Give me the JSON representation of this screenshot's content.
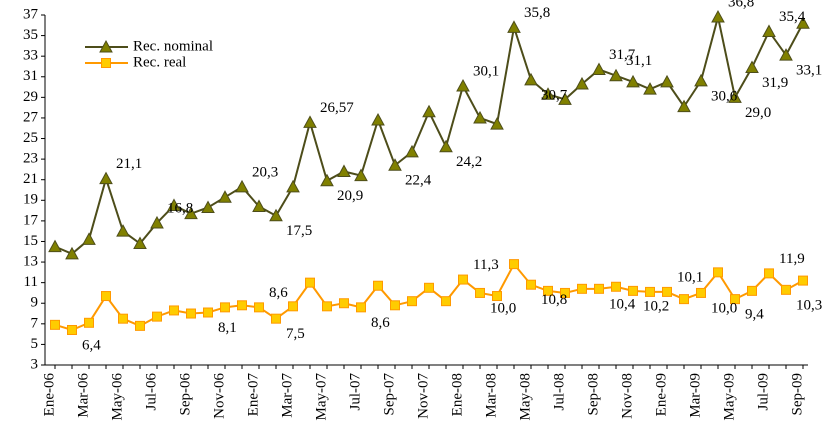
{
  "chart_data": {
    "type": "line",
    "categories": [
      "Ene-06",
      null,
      "Mar-06",
      null,
      "May-06",
      null,
      "Jul-06",
      null,
      "Sep-06",
      null,
      "Nov-06",
      null,
      "Ene-07",
      null,
      "Mar-07",
      null,
      "May-07",
      null,
      "Jul-07",
      null,
      "Sep-07",
      null,
      "Nov-07",
      null,
      "Ene-08",
      null,
      "Mar-08",
      null,
      "May-08",
      null,
      "Jul-08",
      null,
      "Sep-08",
      null,
      "Nov-08",
      null,
      "Ene-09",
      null,
      "Mar-09",
      null,
      "May-09",
      null,
      "Jul-09",
      null,
      "Sep-09"
    ],
    "series": [
      {
        "name": "Rec. nominal",
        "color": "#4d4d1a",
        "marker_color": "#808000",
        "marker": "triangle",
        "values": [
          14.5,
          13.8,
          15.2,
          21.1,
          16.0,
          14.8,
          16.8,
          18.5,
          17.7,
          18.3,
          19.3,
          20.3,
          18.4,
          17.5,
          20.3,
          26.57,
          20.9,
          21.8,
          21.4,
          26.8,
          22.4,
          23.7,
          27.6,
          24.2,
          30.1,
          27.0,
          26.4,
          35.8,
          30.7,
          29.3,
          28.8,
          30.3,
          31.7,
          31.1,
          30.5,
          29.8,
          30.5,
          28.1,
          30.6,
          36.8,
          29.0,
          31.9,
          35.4,
          33.1,
          36.2
        ],
        "value_labels": [
          null,
          null,
          null,
          "21,1",
          null,
          null,
          "16,8",
          null,
          null,
          null,
          null,
          "20,3",
          null,
          "17,5",
          null,
          "26,57",
          "20,9",
          null,
          null,
          null,
          "22,4",
          null,
          null,
          "24,2",
          "30,1",
          null,
          null,
          "35,8",
          "30,7",
          null,
          null,
          null,
          "31,7",
          "31,1",
          null,
          null,
          null,
          null,
          "30,6",
          "36,8",
          "29,0",
          "31,9",
          "35,4",
          "33,1",
          null
        ]
      },
      {
        "name": "Rec. real",
        "color": "#ff9900",
        "marker_color": "#ffcc00",
        "marker": "square",
        "values": [
          6.9,
          6.4,
          7.1,
          9.7,
          7.5,
          6.8,
          7.7,
          8.3,
          8.0,
          8.1,
          8.6,
          8.8,
          8.6,
          7.5,
          8.7,
          11.0,
          8.7,
          9.0,
          8.6,
          10.7,
          8.8,
          9.2,
          10.5,
          9.2,
          11.3,
          10.0,
          9.7,
          12.8,
          10.8,
          10.2,
          10.0,
          10.4,
          10.4,
          10.6,
          10.2,
          10.1,
          10.1,
          9.4,
          10.0,
          12.0,
          9.4,
          10.2,
          11.9,
          10.3,
          11.2
        ],
        "value_labels": [
          null,
          "6,4",
          null,
          null,
          null,
          null,
          null,
          null,
          null,
          "8,1",
          null,
          null,
          "8,6",
          "7,5",
          null,
          null,
          null,
          null,
          "8,6",
          null,
          null,
          null,
          null,
          null,
          "11,3",
          "10,0",
          null,
          null,
          "10,8",
          null,
          null,
          null,
          "10,4",
          null,
          "10,2",
          null,
          "10,1",
          null,
          "10,0",
          null,
          "9,4",
          null,
          "11,9",
          "10,3",
          null
        ]
      }
    ],
    "ylim": [
      3,
      37
    ],
    "yticks": [
      3,
      5,
      7,
      9,
      11,
      13,
      15,
      17,
      19,
      21,
      23,
      25,
      27,
      29,
      31,
      33,
      35,
      37
    ],
    "legend": "upper left",
    "grid": false
  }
}
